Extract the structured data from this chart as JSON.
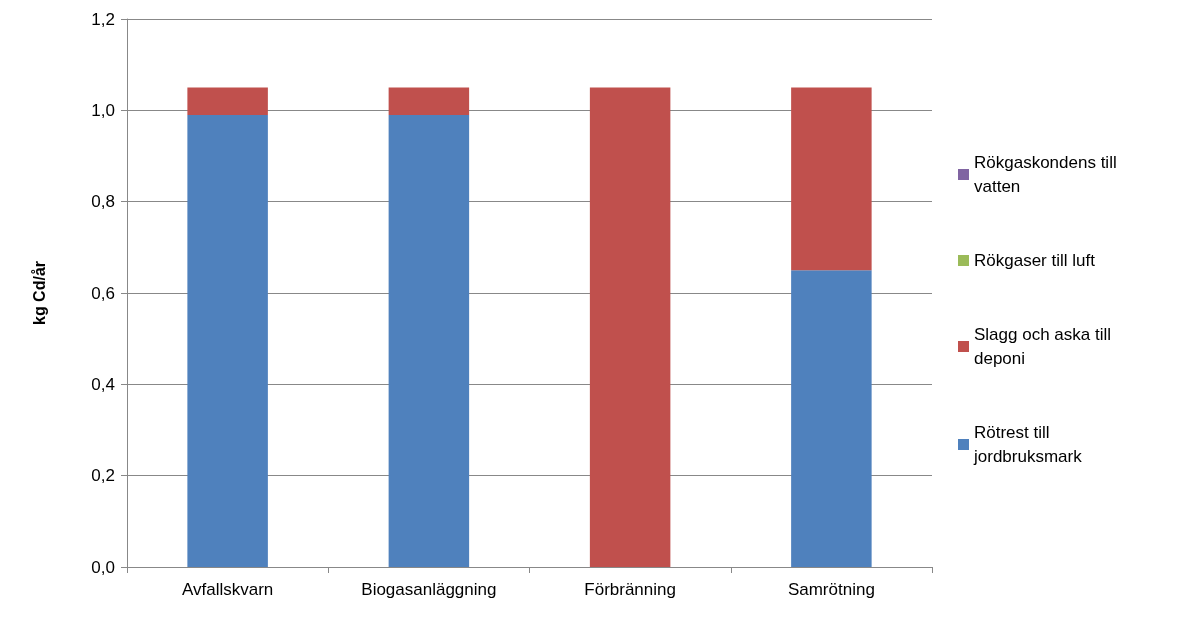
{
  "chart_data": {
    "type": "bar",
    "ylabel": "kg Cd/år",
    "categories": [
      "Avfallskvarn",
      "Biogasanläggning",
      "Förbränning",
      "Samrötning"
    ],
    "stacked": true,
    "series": [
      {
        "name": "Rötrest till jordbruksmark",
        "color": "#4f81bd",
        "values": [
          0.99,
          0.99,
          0,
          0.65
        ]
      },
      {
        "name": "Slagg och aska till deponi",
        "color": "#c0504d",
        "values": [
          0.06,
          0.06,
          1.05,
          0.4
        ]
      },
      {
        "name": "Rökgaser till luft",
        "color": "#9bbb59",
        "values": [
          0,
          0,
          0,
          0
        ]
      },
      {
        "name": "Rökgaskondens till vatten",
        "color": "#8064a2",
        "values": [
          0,
          0,
          0,
          0
        ]
      }
    ],
    "ylim": [
      0,
      1.2
    ],
    "yticks": [
      {
        "value": 0,
        "label": "0,0"
      },
      {
        "value": 0.2,
        "label": "0,2"
      },
      {
        "value": 0.4,
        "label": "0,4"
      },
      {
        "value": 0.6,
        "label": "0,6"
      },
      {
        "value": 0.8,
        "label": "0,8"
      },
      {
        "value": 1,
        "label": "1,0"
      },
      {
        "value": 1.2,
        "label": "1,2"
      }
    ],
    "grid": "y",
    "legend": "right"
  }
}
